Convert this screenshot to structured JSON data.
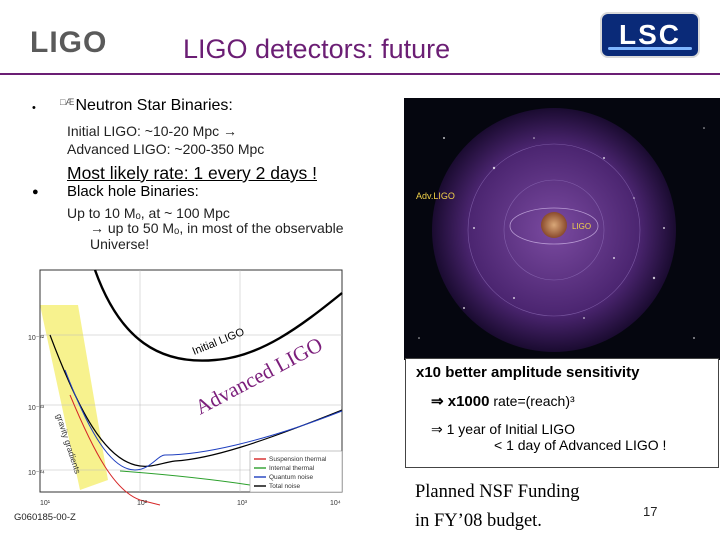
{
  "header": {
    "logo_text": "LIGO",
    "title": "LIGO detectors: future",
    "lsc_logo_text": "LSC"
  },
  "ns_section": {
    "bullet": "•",
    "glyph": "□Æ",
    "heading": "Neutron Star Binaries:",
    "line1": "Initial LIGO: ~10-20 Mpc →",
    "line2": "Advanced LIGO: ~200-350 Mpc",
    "rate": "Most likely rate: 1 every 2 days !"
  },
  "bh_section": {
    "bullet": "●",
    "heading": "Black hole Binaries:",
    "line1": "Up to 10 Mₒ, at ~ 100 Mpc",
    "line2": "→ up to 50 Mₒ, in most of the observable",
    "line3": "Universe!"
  },
  "universe_image": {
    "label_advligo": "Adv.LIGO",
    "label_ligo": "LIGO"
  },
  "plot": {
    "label_initial": "Initial LIGO",
    "label_advanced": "Advanced LIGO",
    "label_gravity": "gravity gradients",
    "legend": [
      "Suspension thermal",
      "Internal thermal",
      "Quantum noise",
      "Total noise"
    ],
    "legend_colors": [
      "#d62728",
      "#2ca02c",
      "#1f3fbf",
      "#000000"
    ],
    "tick_x": [
      "10¹",
      "10²",
      "10³",
      "10⁴"
    ],
    "tick_y": [
      "10⁻²²",
      "10⁻²³",
      "10⁻²⁴"
    ]
  },
  "callout": {
    "line1": "x10 better amplitude sensitivity",
    "line2_bold": "⇒ x1000",
    "line2_light": " rate=(reach)³",
    "line3": "⇒ 1 year of Initial LIGO",
    "line4": "< 1 day of Advanced LIGO !"
  },
  "funding": {
    "line1": "Planned NSF Funding",
    "line2": "in FY’08 budget."
  },
  "footer": {
    "code": "G060185-00-Z",
    "page_number": "17"
  }
}
